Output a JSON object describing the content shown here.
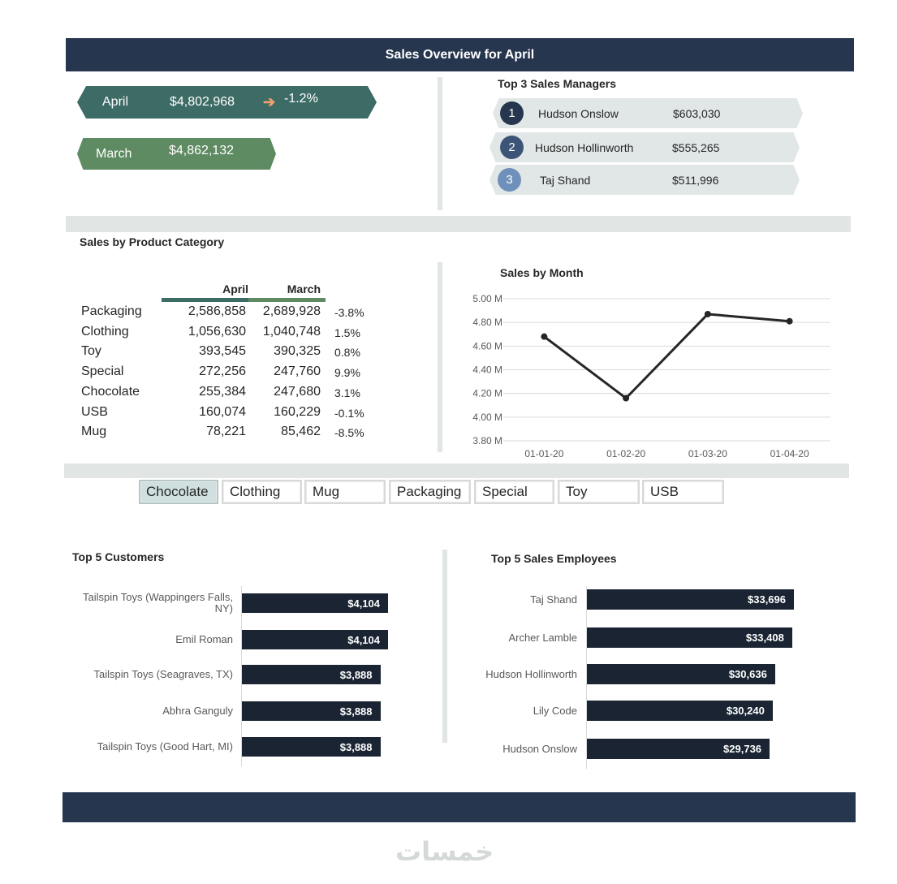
{
  "header": {
    "title": "Sales Overview for April"
  },
  "kpi": {
    "april": {
      "label": "April",
      "value": "$4,802,968",
      "change": "-1.2%",
      "icon": "arrow-right-icon"
    },
    "march": {
      "label": "March",
      "value": "$4,862,132"
    }
  },
  "managers": {
    "title": "Top 3 Sales Managers",
    "items": [
      {
        "rank": "1",
        "name": "Hudson  Onslow",
        "amount": "$603,030",
        "color": "#26364e"
      },
      {
        "rank": "2",
        "name": "Hudson  Hollinworth",
        "amount": "$555,265",
        "color": "#3c5577"
      },
      {
        "rank": "3",
        "name": "Taj  Shand",
        "amount": "$511,996",
        "color": "#6f90ba"
      }
    ]
  },
  "category": {
    "title": "Sales by Product Category",
    "col_april": "April",
    "col_march": "March",
    "rows": [
      {
        "name": "Packaging",
        "april": "2,586,858",
        "march": "2,689,928",
        "change": "-3.8%"
      },
      {
        "name": "Clothing",
        "april": "1,056,630",
        "march": "1,040,748",
        "change": "1.5%"
      },
      {
        "name": "Toy",
        "april": "393,545",
        "march": "390,325",
        "change": "0.8%"
      },
      {
        "name": "Special",
        "april": "272,256",
        "march": "247,760",
        "change": "9.9%"
      },
      {
        "name": "Chocolate",
        "april": "255,384",
        "march": "247,680",
        "change": "3.1%"
      },
      {
        "name": "USB",
        "april": "160,074",
        "march": "160,229",
        "change": "-0.1%"
      },
      {
        "name": "Mug",
        "april": "78,221",
        "march": "85,462",
        "change": "-8.5%"
      }
    ]
  },
  "slicer": {
    "items": [
      "Chocolate",
      "Clothing",
      "Mug",
      "Packaging",
      "Special",
      "Toy",
      "USB"
    ],
    "selected": "Chocolate"
  },
  "customers": {
    "title": "Top 5 Customers",
    "items": [
      {
        "name": "Tailspin Toys (Wappingers Falls, NY)",
        "value": 4104,
        "label": "$4,104"
      },
      {
        "name": "Emil Roman",
        "value": 4104,
        "label": "$4,104"
      },
      {
        "name": "Tailspin Toys (Seagraves, TX)",
        "value": 3888,
        "label": "$3,888"
      },
      {
        "name": "Abhra Ganguly",
        "value": 3888,
        "label": "$3,888"
      },
      {
        "name": "Tailspin Toys (Good Hart, MI)",
        "value": 3888,
        "label": "$3,888"
      }
    ]
  },
  "employees": {
    "title": "Top 5 Sales  Employees",
    "items": [
      {
        "name": "Taj Shand",
        "value": 33696,
        "label": "$33,696"
      },
      {
        "name": "Archer Lamble",
        "value": 33408,
        "label": "$33,408"
      },
      {
        "name": "Hudson Hollinworth",
        "value": 30636,
        "label": "$30,636"
      },
      {
        "name": "Lily Code",
        "value": 30240,
        "label": "$30,240"
      },
      {
        "name": "Hudson Onslow",
        "value": 29736,
        "label": "$29,736"
      }
    ]
  },
  "chart_data": {
    "type": "line",
    "title": "Sales  by  Month",
    "x": [
      "01-01-20",
      "01-02-20",
      "01-03-20",
      "01-04-20"
    ],
    "series": [
      {
        "values": [
          4.68,
          4.16,
          4.87,
          4.81
        ]
      }
    ],
    "ylim": [
      3.8,
      5.0
    ],
    "yticks": [
      "3.80 M",
      "4.00 M",
      "4.20 M",
      "4.40 M",
      "4.60 M",
      "4.80 M",
      "5.00 M"
    ],
    "ytick_values": [
      3.8,
      4.0,
      4.2,
      4.4,
      4.6,
      4.8,
      5.0
    ],
    "grid": true,
    "line_color": "#262626"
  },
  "watermark": {
    "text": "خمسات"
  }
}
